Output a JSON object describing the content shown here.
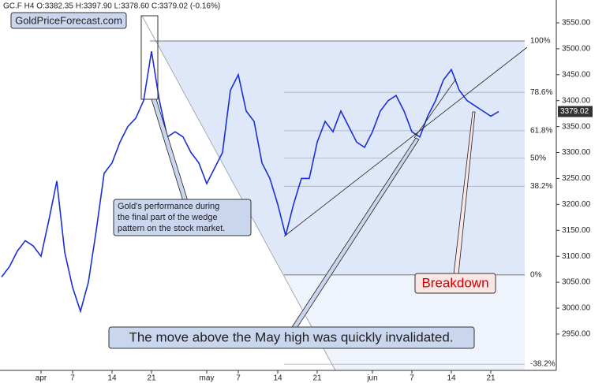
{
  "chart_data": {
    "type": "line",
    "title": "GC.F  H4  O:3382.35 H:3397.90 L:3378.60 C:3379.02 (-0.16%)",
    "watermark": "GoldPriceForecast.com",
    "last_price_label": "3379.02",
    "annotations": [
      "Gold's performance during",
      "the final part of the wedge",
      "pattern on the stock market.",
      "Breakdown",
      "The move above the May high was quickly invalidated."
    ],
    "categories": [
      null,
      null,
      null,
      null,
      null,
      "apr",
      null,
      null,
      null,
      "7",
      null,
      null,
      null,
      null,
      "14",
      null,
      null,
      null,
      null,
      "21",
      null,
      null,
      null,
      null,
      null,
      null,
      "may",
      null,
      null,
      null,
      "7",
      null,
      null,
      null,
      null,
      "14",
      null,
      null,
      null,
      null,
      "21",
      null,
      null,
      null,
      null,
      null,
      null,
      "jun",
      null,
      null,
      null,
      null,
      "7",
      null,
      null,
      null,
      null,
      "14",
      null,
      null,
      null,
      null,
      "21",
      null
    ],
    "series": [
      {
        "name": "GC.F",
        "color": "#1a2fd6",
        "values": [
          3060,
          3080,
          3110,
          3130,
          3120,
          3100,
          3170,
          3245,
          3108,
          3040,
          2994,
          3050,
          3150,
          3260,
          3280,
          3320,
          3350,
          3366,
          3400,
          3495,
          3400,
          3330,
          3340,
          3330,
          3300,
          3280,
          3240,
          3270,
          3300,
          3420,
          3450,
          3380,
          3360,
          3280,
          3250,
          3200,
          3140,
          3200,
          3250,
          3250,
          3320,
          3360,
          3340,
          3380,
          3350,
          3320,
          3310,
          3340,
          3380,
          3400,
          3410,
          3380,
          3340,
          3330,
          3370,
          3400,
          3440,
          3460,
          3420,
          3400,
          3390,
          3380,
          3370,
          3379
        ]
      }
    ],
    "levels": [
      {
        "label": "100%",
        "value": 3515
      },
      {
        "label": "78.6%",
        "value": 3416
      },
      {
        "label": "61.8%",
        "value": 3342
      },
      {
        "label": "50%",
        "value": 3289
      },
      {
        "label": "38.2%",
        "value": 3235
      },
      {
        "label": "0%",
        "value": 3064
      },
      {
        "label": "-38.2%",
        "value": 2892
      }
    ],
    "ylim": [
      2880,
      3594
    ],
    "yticks": [
      {
        "value": 2950,
        "label": "2950.00"
      },
      {
        "value": 3000,
        "label": "3000.00"
      },
      {
        "value": 3050,
        "label": "3050.00"
      },
      {
        "value": 3100,
        "label": "3100.00"
      },
      {
        "value": 3150,
        "label": "3150.00"
      },
      {
        "value": 3200,
        "label": "3200.00"
      },
      {
        "value": 3250,
        "label": "3250.00"
      },
      {
        "value": 3300,
        "label": "3300.00"
      },
      {
        "value": 3350,
        "label": "3350.00"
      },
      {
        "value": 3400,
        "label": "3400.00"
      },
      {
        "value": 3450,
        "label": "3450.00"
      },
      {
        "value": 3500,
        "label": "3500.00"
      },
      {
        "value": 3550,
        "label": "3550.00"
      }
    ]
  }
}
